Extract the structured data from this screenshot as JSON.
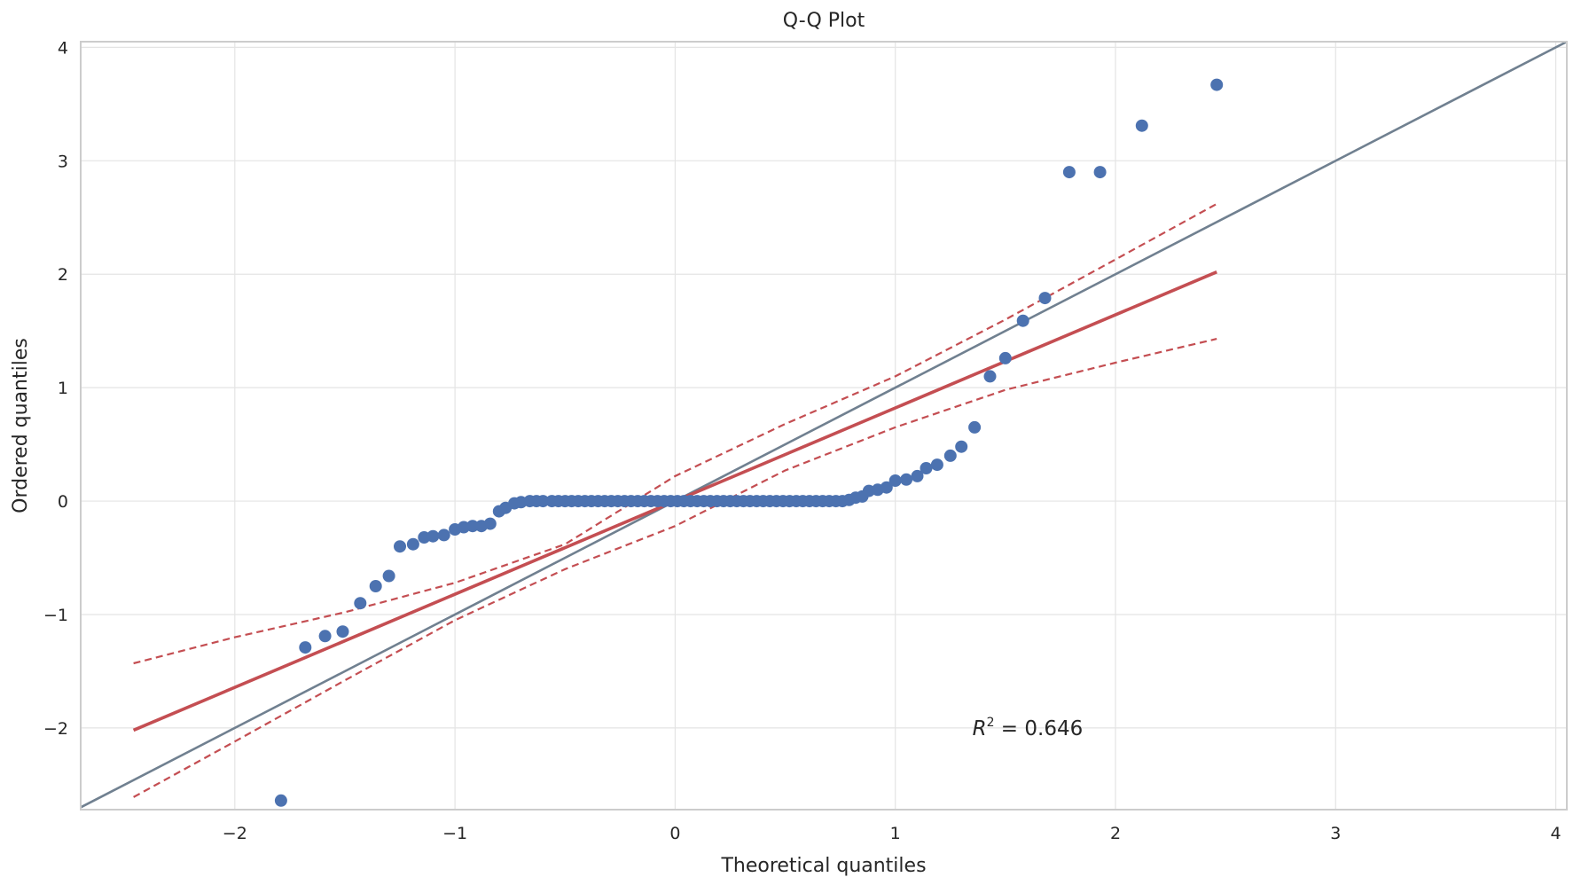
{
  "chart_data": {
    "type": "scatter",
    "title": "Q-Q Plot",
    "xlabel": "Theoretical quantiles",
    "ylabel": "Ordered quantiles",
    "xlim": [
      -2.7,
      4.05
    ],
    "ylim": [
      -2.72,
      4.05
    ],
    "xticks": [
      -2,
      -1,
      0,
      1,
      2,
      3,
      4
    ],
    "yticks": [
      -2,
      -1,
      0,
      1,
      2,
      3,
      4
    ],
    "xtick_labels": [
      "−2",
      "−1",
      "0",
      "1",
      "2",
      "3",
      "4"
    ],
    "ytick_labels": [
      "−2",
      "−1",
      "0",
      "1",
      "2",
      "3",
      "4"
    ],
    "grid": true,
    "annotation": {
      "lhs": "R",
      "sup": "2",
      "rhs": " = 0.646",
      "x": 1.35,
      "y": -2.0
    },
    "reference_line": {
      "x": [
        -2.7,
        4.05
      ],
      "y": [
        -2.7,
        4.05
      ],
      "color": "#708090"
    },
    "fit_line": {
      "x": [
        -2.46,
        2.46
      ],
      "y": [
        -2.02,
        2.02
      ],
      "color": "#c44e52"
    },
    "confidence_band": {
      "x": [
        -2.46,
        -2.0,
        -1.5,
        -1.0,
        -0.5,
        0.0,
        0.5,
        1.0,
        1.5,
        2.0,
        2.46
      ],
      "upper": [
        -1.43,
        -1.2,
        -0.98,
        -0.72,
        -0.38,
        0.22,
        0.68,
        1.1,
        1.6,
        2.13,
        2.62
      ],
      "lower": [
        -2.61,
        -2.12,
        -1.58,
        -1.05,
        -0.6,
        -0.22,
        0.27,
        0.65,
        0.98,
        1.22,
        1.43
      ],
      "color": "#c44e52"
    },
    "series": [
      {
        "color": "#4c72b0",
        "points": [
          [
            -1.79,
            -2.64
          ],
          [
            -1.68,
            -1.29
          ],
          [
            -1.59,
            -1.19
          ],
          [
            -1.51,
            -1.15
          ],
          [
            -1.43,
            -0.9
          ],
          [
            -1.36,
            -0.75
          ],
          [
            -1.3,
            -0.66
          ],
          [
            -1.25,
            -0.4
          ],
          [
            -1.19,
            -0.38
          ],
          [
            -1.14,
            -0.32
          ],
          [
            -1.1,
            -0.31
          ],
          [
            -1.05,
            -0.3
          ],
          [
            -1.0,
            -0.25
          ],
          [
            -0.96,
            -0.23
          ],
          [
            -0.92,
            -0.22
          ],
          [
            -0.88,
            -0.22
          ],
          [
            -0.84,
            -0.2
          ],
          [
            -0.8,
            -0.09
          ],
          [
            -0.77,
            -0.06
          ],
          [
            -0.73,
            -0.02
          ],
          [
            -0.7,
            -0.01
          ],
          [
            -0.66,
            0.0
          ],
          [
            -0.63,
            0.0
          ],
          [
            -0.6,
            0.0
          ],
          [
            -0.56,
            0.0
          ],
          [
            -0.53,
            0.0
          ],
          [
            -0.5,
            0.0
          ],
          [
            -0.47,
            0.0
          ],
          [
            -0.44,
            0.0
          ],
          [
            -0.41,
            0.0
          ],
          [
            -0.38,
            0.0
          ],
          [
            -0.35,
            0.0
          ],
          [
            -0.32,
            0.0
          ],
          [
            -0.29,
            0.0
          ],
          [
            -0.26,
            0.0
          ],
          [
            -0.23,
            0.0
          ],
          [
            -0.2,
            0.0
          ],
          [
            -0.17,
            0.0
          ],
          [
            -0.14,
            0.0
          ],
          [
            -0.11,
            0.0
          ],
          [
            -0.08,
            0.0
          ],
          [
            -0.05,
            0.0
          ],
          [
            -0.02,
            0.0
          ],
          [
            0.01,
            0.0
          ],
          [
            0.04,
            0.0
          ],
          [
            0.07,
            0.0
          ],
          [
            0.1,
            0.0
          ],
          [
            0.13,
            0.0
          ],
          [
            0.16,
            0.0
          ],
          [
            0.19,
            0.0
          ],
          [
            0.22,
            0.0
          ],
          [
            0.25,
            0.0
          ],
          [
            0.28,
            0.0
          ],
          [
            0.31,
            0.0
          ],
          [
            0.34,
            0.0
          ],
          [
            0.37,
            0.0
          ],
          [
            0.4,
            0.0
          ],
          [
            0.43,
            0.0
          ],
          [
            0.46,
            0.0
          ],
          [
            0.49,
            0.0
          ],
          [
            0.52,
            0.0
          ],
          [
            0.55,
            0.0
          ],
          [
            0.58,
            0.0
          ],
          [
            0.61,
            0.0
          ],
          [
            0.64,
            0.0
          ],
          [
            0.67,
            0.0
          ],
          [
            0.7,
            0.0
          ],
          [
            0.73,
            0.0
          ],
          [
            0.76,
            0.0
          ],
          [
            0.79,
            0.01
          ],
          [
            0.82,
            0.03
          ],
          [
            0.85,
            0.04
          ],
          [
            0.88,
            0.09
          ],
          [
            0.92,
            0.1
          ],
          [
            0.96,
            0.12
          ],
          [
            1.0,
            0.18
          ],
          [
            1.05,
            0.19
          ],
          [
            1.1,
            0.22
          ],
          [
            1.14,
            0.29
          ],
          [
            1.19,
            0.32
          ],
          [
            1.25,
            0.4
          ],
          [
            1.3,
            0.48
          ],
          [
            1.36,
            0.65
          ],
          [
            1.43,
            1.1
          ],
          [
            1.5,
            1.26
          ],
          [
            1.58,
            1.59
          ],
          [
            1.68,
            1.79
          ],
          [
            1.79,
            2.9
          ],
          [
            1.93,
            2.9
          ],
          [
            2.12,
            3.31
          ],
          [
            2.46,
            3.67
          ]
        ]
      }
    ]
  }
}
